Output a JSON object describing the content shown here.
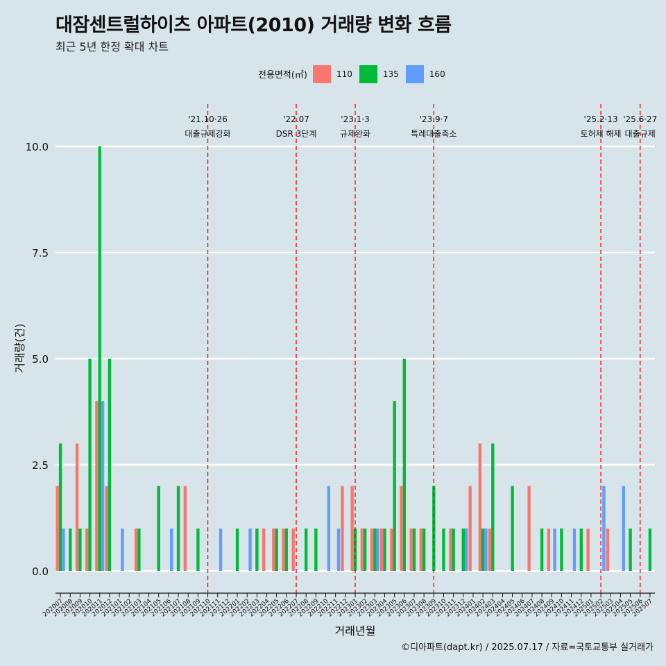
{
  "title": "대잠센트럴하이츠 아파트(2010) 거래량 변화 흐름",
  "subtitle": "최근 5년 한정 확대 차트",
  "caption": "©디아파트(dapt.kr) / 2025.07.17 / 자료=국토교통부 실거래가",
  "legend": {
    "title": "전용면적(㎡)",
    "items": [
      {
        "label": "110",
        "color": "#f8766d"
      },
      {
        "label": "135",
        "color": "#00ba38"
      },
      {
        "label": "160",
        "color": "#619cff"
      }
    ]
  },
  "chart_data": {
    "type": "bar",
    "xlabel": "거래년월",
    "ylabel": "거래량(건)",
    "ylim": [
      0,
      10
    ],
    "yticks": [
      0.0,
      2.5,
      5.0,
      7.5,
      10.0
    ],
    "ytick_labels": [
      "0.0",
      "2.5",
      "5.0",
      "7.5",
      "10.0"
    ],
    "grid": "horizontal",
    "categories": [
      "202007",
      "202008",
      "202009",
      "202010",
      "202011",
      "202012",
      "202101",
      "202102",
      "202103",
      "202104",
      "202105",
      "202106",
      "202107",
      "202108",
      "202109",
      "202110",
      "202111",
      "202112",
      "202201",
      "202202",
      "202203",
      "202204",
      "202205",
      "202206",
      "202207",
      "202208",
      "202209",
      "202210",
      "202211",
      "202212",
      "202301",
      "202302",
      "202303",
      "202304",
      "202305",
      "202306",
      "202307",
      "202308",
      "202309",
      "202310",
      "202311",
      "202312",
      "202401",
      "202402",
      "202403",
      "202404",
      "202405",
      "202406",
      "202407",
      "202408",
      "202409",
      "202410",
      "202411",
      "202412",
      "202501",
      "202502",
      "202503",
      "202504",
      "202505",
      "202506",
      "202507"
    ],
    "series": [
      {
        "name": "110",
        "color": "#f8766d",
        "values": [
          2,
          0,
          3,
          1,
          4,
          2,
          0,
          0,
          1,
          0,
          0,
          0,
          0,
          2,
          0,
          0,
          0,
          0,
          0,
          0,
          0,
          1,
          1,
          1,
          1,
          0,
          0,
          0,
          0,
          2,
          2,
          1,
          1,
          1,
          1,
          2,
          1,
          1,
          0,
          0,
          1,
          0,
          2,
          3,
          1,
          0,
          0,
          0,
          2,
          0,
          1,
          0,
          0,
          0,
          1,
          0,
          1,
          0,
          0,
          0,
          0
        ]
      },
      {
        "name": "135",
        "color": "#00ba38",
        "values": [
          3,
          1,
          1,
          5,
          10,
          5,
          0,
          0,
          1,
          0,
          2,
          0,
          2,
          0,
          1,
          0,
          0,
          0,
          1,
          0,
          1,
          0,
          1,
          1,
          0,
          1,
          1,
          0,
          0,
          0,
          1,
          1,
          1,
          1,
          4,
          5,
          1,
          1,
          2,
          1,
          1,
          1,
          0,
          1,
          3,
          0,
          2,
          0,
          0,
          1,
          0,
          1,
          0,
          1,
          0,
          0,
          0,
          0,
          1,
          0,
          1
        ]
      },
      {
        "name": "160",
        "color": "#619cff",
        "values": [
          1,
          0,
          0,
          0,
          4,
          0,
          1,
          0,
          0,
          0,
          0,
          1,
          0,
          0,
          0,
          0,
          1,
          0,
          0,
          1,
          0,
          0,
          0,
          0,
          0,
          0,
          0,
          2,
          1,
          0,
          0,
          0,
          1,
          0,
          0,
          0,
          0,
          0,
          0,
          0,
          0,
          1,
          0,
          1,
          0,
          0,
          0,
          0,
          0,
          0,
          1,
          0,
          1,
          0,
          0,
          2,
          0,
          2,
          0,
          0,
          0
        ]
      }
    ],
    "annotations": [
      {
        "category": "202110",
        "date": "'21.10·26",
        "label": "대출규제강화"
      },
      {
        "category": "202207",
        "date": "'22.07",
        "label": "DSR 3단계"
      },
      {
        "category": "202301",
        "date": "'23.1·3",
        "label": "규제완화"
      },
      {
        "category": "202309",
        "date": "'23.9·7",
        "label": "특례대출축소"
      },
      {
        "category": "202502",
        "date": "'25.2·13",
        "label": "토허제 해제"
      },
      {
        "category": "202506",
        "date": "'25.6·27",
        "label": "대출규제"
      }
    ]
  }
}
